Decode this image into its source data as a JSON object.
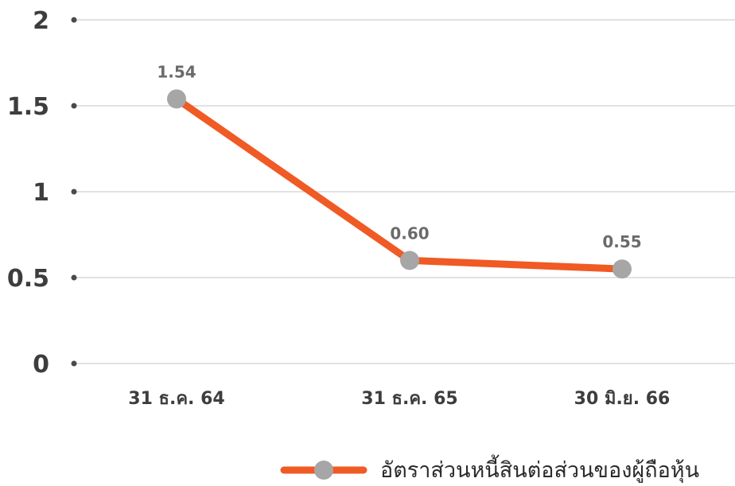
{
  "chart_data": {
    "type": "line",
    "categories": [
      "31 ธ.ค. 64",
      "31 ธ.ค. 65",
      "30 มิ.ย. 66"
    ],
    "series": [
      {
        "name": "อัตราส่วนหนี้สินต่อส่วนของผู้ถือหุ้น",
        "values": [
          1.54,
          0.6,
          0.55
        ],
        "data_labels": [
          "1.54",
          "0.60",
          "0.55"
        ],
        "color": "#f05a24",
        "marker_color": "#a6a6a6"
      }
    ],
    "y_ticks": [
      "0",
      "0.5",
      "1",
      "1.5",
      "2"
    ],
    "ylim": [
      0,
      2
    ],
    "grid": true,
    "legend_position": "bottom-right",
    "title": "",
    "xlabel": "",
    "ylabel": ""
  }
}
